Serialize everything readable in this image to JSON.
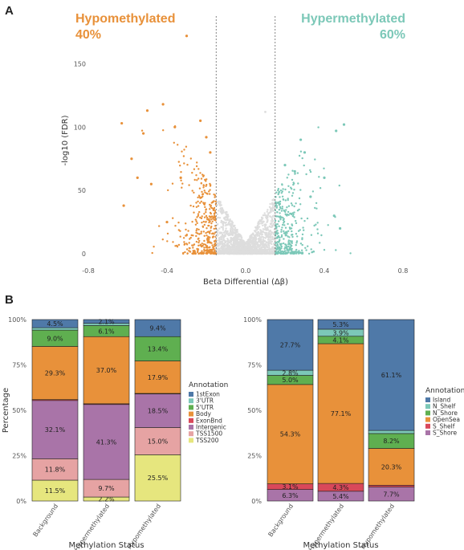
{
  "panel_a_label": "A",
  "panel_b_label": "B",
  "volcano": {
    "hypo_label": "Hypomethylated",
    "hypo_pct": "40%",
    "hyper_label": "Hypermethylated",
    "hyper_pct": "60%",
    "hypo_color": "#E8913A",
    "hyper_color": "#7CC8B8",
    "ns_color": "#DDDDDD",
    "xlabel": "Beta Differential (Δβ)",
    "ylabel": "-log10 (FDR)",
    "xticks": [
      "-0.8",
      "-0.4",
      "0.0",
      "0.4",
      "0.8"
    ],
    "yticks": [
      "0",
      "50",
      "100",
      "150"
    ]
  },
  "chart_data": [
    {
      "type": "scatter",
      "x_range": [
        -0.8,
        0.8
      ],
      "y_range": [
        0,
        175
      ],
      "thresholds": [
        -0.15,
        0.15
      ],
      "series": [
        {
          "name": "Hypomethylated",
          "points": [
            [
              -0.3,
              172
            ],
            [
              -0.42,
              118
            ],
            [
              -0.5,
              113
            ],
            [
              -0.63,
              103
            ],
            [
              -0.52,
              95
            ],
            [
              -0.36,
              100
            ],
            [
              -0.2,
              92
            ],
            [
              -0.18,
              80
            ],
            [
              -0.58,
              75
            ],
            [
              -0.48,
              55
            ],
            [
              -0.62,
              38
            ],
            [
              -0.4,
              25
            ],
            [
              -0.23,
              105
            ],
            [
              -0.55,
              60
            ],
            [
              -0.33,
              60
            ]
          ]
        },
        {
          "name": "Hypermethylated",
          "points": [
            [
              0.5,
              102
            ],
            [
              0.46,
              97
            ],
            [
              0.3,
              80
            ],
            [
              0.25,
              65
            ],
            [
              0.4,
              60
            ],
            [
              0.33,
              45
            ],
            [
              0.45,
              30
            ],
            [
              0.2,
              70
            ],
            [
              0.48,
              20
            ],
            [
              0.28,
              90
            ]
          ]
        }
      ]
    },
    {
      "type": "bar",
      "stacked": true,
      "xlabel": "Methylation Status",
      "ylabel": "Percentage",
      "categories": [
        "Background",
        "Hypermethylated",
        "Hypomethylated"
      ],
      "yticks": [
        "0%",
        "25%",
        "50%",
        "75%",
        "100%"
      ],
      "legend_title": "Annotation",
      "series": [
        {
          "name": "TSS200",
          "color": "#E6E67E",
          "values": [
            11.5,
            2.2,
            25.5
          ]
        },
        {
          "name": "TSS1500",
          "color": "#E6A3A3",
          "values": [
            11.8,
            9.7,
            15.0
          ]
        },
        {
          "name": "Intergenic",
          "color": "#A974A8",
          "values": [
            32.1,
            41.3,
            18.5
          ]
        },
        {
          "name": "ExonBnd",
          "color": "#D9485A",
          "values": [
            0.5,
            0.4,
            0.3
          ]
        },
        {
          "name": "Body",
          "color": "#E8913A",
          "values": [
            29.3,
            37.0,
            17.9
          ]
        },
        {
          "name": "5'UTR",
          "color": "#5FAF50",
          "values": [
            9.0,
            6.1,
            13.4
          ]
        },
        {
          "name": "3'UTR",
          "color": "#7CC8B8",
          "values": [
            1.3,
            1.2,
            0.0
          ]
        },
        {
          "name": "1stExon",
          "color": "#4F79A8",
          "values": [
            4.5,
            2.1,
            9.4
          ]
        }
      ],
      "labels": [
        [
          "11.5%",
          "11.8%",
          "32.1%",
          "",
          "29.3%",
          "9.0%",
          "",
          "4.5%"
        ],
        [
          "2.2%",
          "9.7%",
          "41.3%",
          "",
          "37.0%",
          "6.1%",
          "",
          "2.1%"
        ],
        [
          "25.5%",
          "15.0%",
          "18.5%",
          "",
          "17.9%",
          "13.4%",
          "",
          "9.4%"
        ]
      ]
    },
    {
      "type": "bar",
      "stacked": true,
      "xlabel": "Methylation Status",
      "ylabel": "",
      "categories": [
        "Background",
        "Hypermethylated",
        "Hypomethylated"
      ],
      "yticks": [
        "0%",
        "25%",
        "50%",
        "75%",
        "100%"
      ],
      "legend_title": "Annotation",
      "series": [
        {
          "name": "S_Shore",
          "color": "#A974A8",
          "values": [
            6.3,
            5.4,
            7.7
          ]
        },
        {
          "name": "S_Shelf",
          "color": "#D9485A",
          "values": [
            3.1,
            4.3,
            1.0
          ]
        },
        {
          "name": "OpenSea",
          "color": "#E8913A",
          "values": [
            54.3,
            77.1,
            20.3
          ]
        },
        {
          "name": "N_Shore",
          "color": "#5FAF50",
          "values": [
            5.0,
            4.1,
            8.2
          ]
        },
        {
          "name": "N_Shelf",
          "color": "#7CC8B8",
          "values": [
            2.8,
            3.9,
            1.7
          ]
        },
        {
          "name": "Island",
          "color": "#4F79A8",
          "values": [
            27.7,
            5.3,
            61.1
          ]
        }
      ],
      "labels": [
        [
          "6.3%",
          "3.1%",
          "54.3%",
          "5.0%",
          "2.8%",
          "27.7%"
        ],
        [
          "5.4%",
          "4.3%",
          "77.1%",
          "4.1%",
          "3.9%",
          "5.3%"
        ],
        [
          "7.7%",
          "",
          "20.3%",
          "8.2%",
          "",
          "61.1%"
        ]
      ]
    }
  ]
}
